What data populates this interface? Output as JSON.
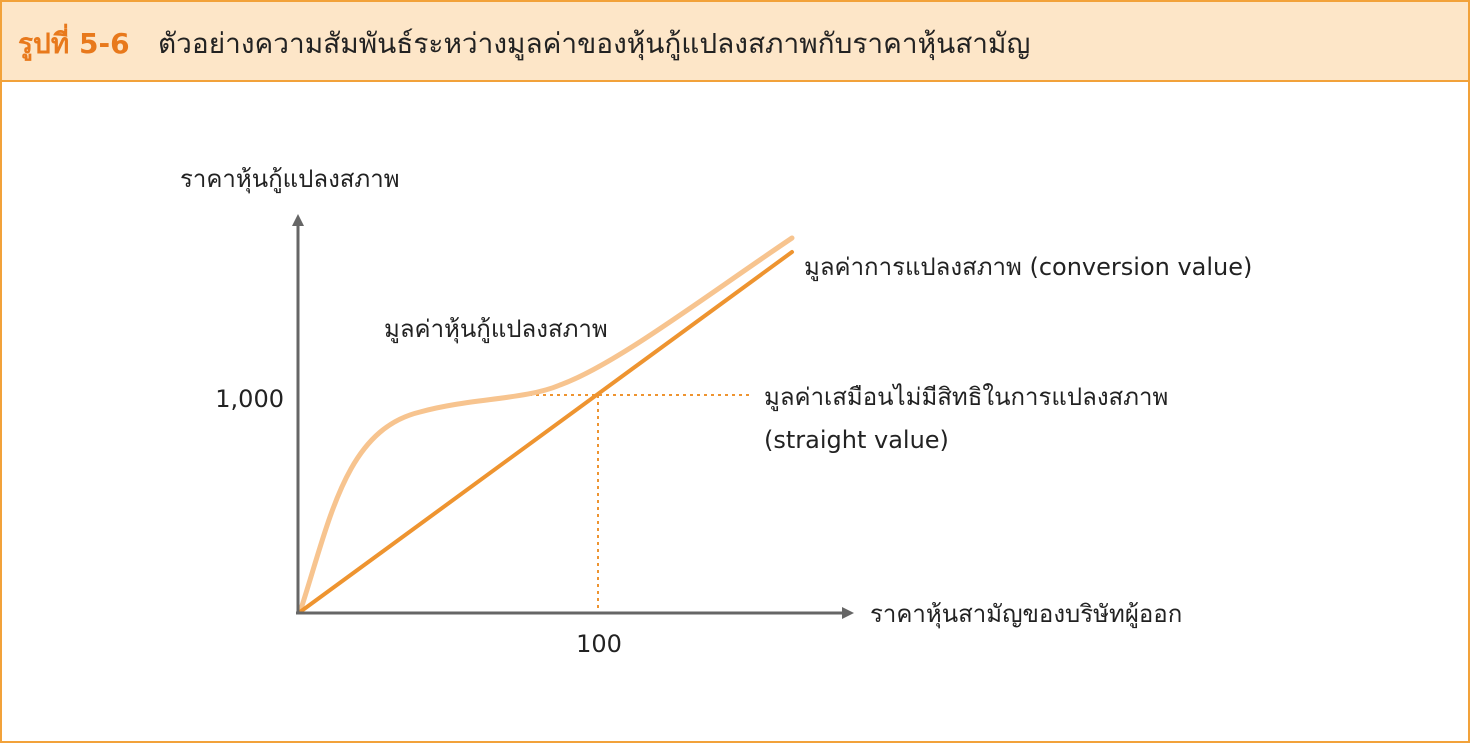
{
  "figure": {
    "number": "รูปที่ 5-6",
    "title": "ตัวอย่างความสัมพันธ์ระหว่างมูลค่าของหุ้นกู้แปลงสภาพกับราคาหุ้นสามัญ"
  },
  "diagram": {
    "y_axis_label": "ราคาหุ้นกู้แปลงสภาพ",
    "x_axis_label": "ราคาหุ้นสามัญของบริษัทผู้ออก",
    "y_tick": "1,000",
    "x_tick": "100",
    "curve_label": "มูลค่าหุ้นกู้แปลงสภาพ",
    "conversion_label": "มูลค่าการแปลงสภาพ (conversion value)",
    "straight_label_line1": "มูลค่าเสมือนไม่มีสิทธิในการแปลงสภาพ",
    "straight_label_line2": "(straight value)",
    "colors": {
      "accent": "#e8791c",
      "header_bg": "#fde6c8",
      "border": "#f2a23a",
      "conversion_line": "#ee9430",
      "bond_curve": "#f7c48f",
      "axis": "#666666"
    }
  }
}
